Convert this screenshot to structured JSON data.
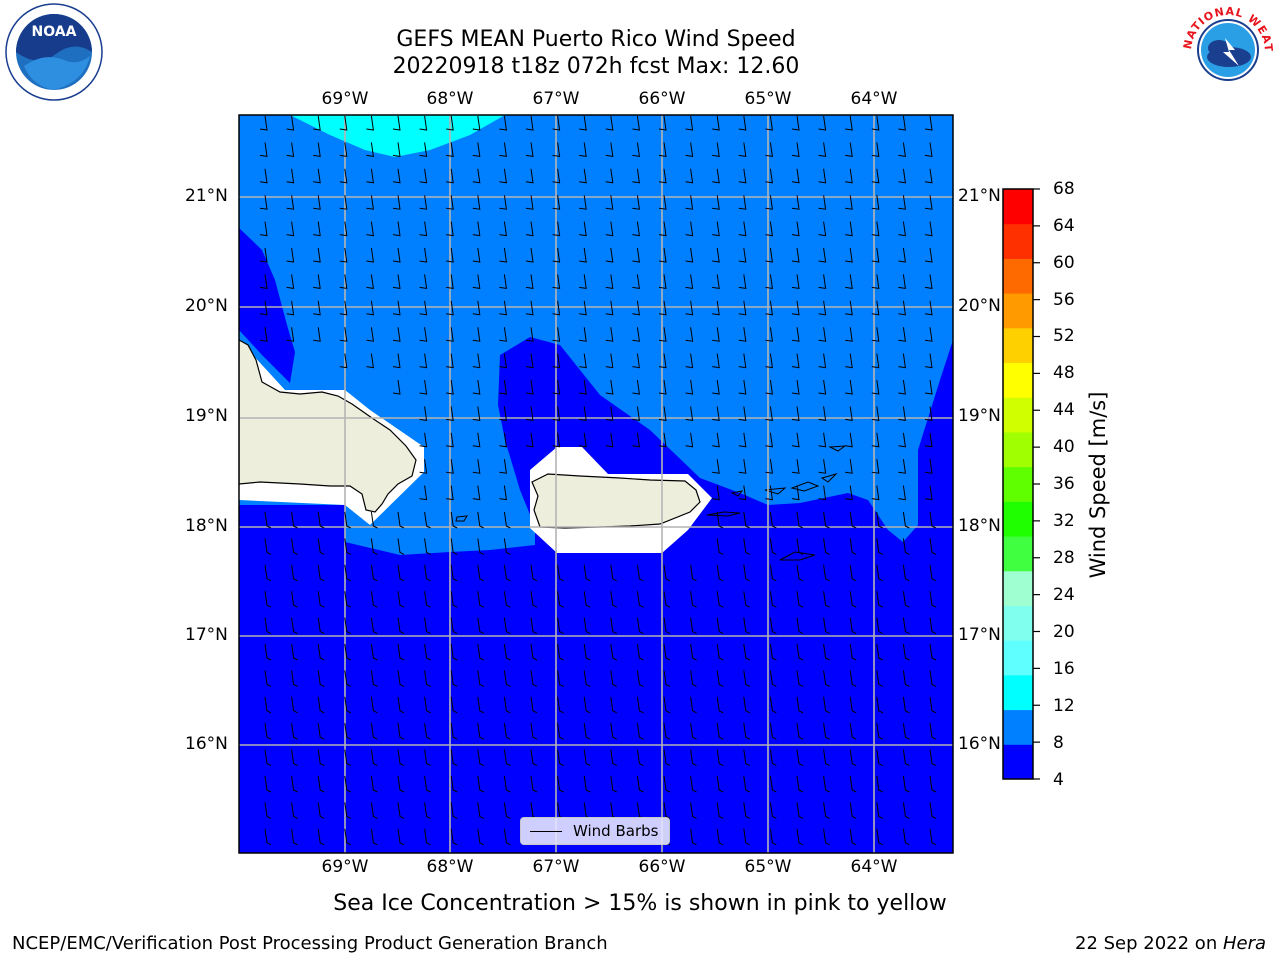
{
  "title": {
    "line1": "GEFS MEAN Puerto Rico Wind Speed",
    "line2": "20220918 t18z 072h fcst   Max: 12.60"
  },
  "map": {
    "lon_ticks": [
      "69°W",
      "68°W",
      "67°W",
      "66°W",
      "65°W",
      "64°W"
    ],
    "lat_ticks": [
      "21°N",
      "20°N",
      "19°N",
      "18°N",
      "17°N",
      "16°N"
    ],
    "lon_range": [
      -70.0,
      -63.25
    ],
    "lat_range": [
      15.0,
      21.75
    ],
    "colors": {
      "speed_4_8": "#0000ff",
      "speed_8_12": "#0080ff",
      "speed_12_16": "#00ffff",
      "land": "#eeeedd",
      "grid": "#b4b4b4"
    },
    "legend_label": "Wind Barbs",
    "barb_style": "short half-barbs pointing toward SE, winds from ENE"
  },
  "colorbar": {
    "label": "Wind Speed [m/s]",
    "ticks": [
      4,
      8,
      12,
      16,
      20,
      24,
      28,
      32,
      36,
      40,
      44,
      48,
      52,
      56,
      60,
      64,
      68
    ],
    "colors": [
      "#0000ff",
      "#0080ff",
      "#00ffff",
      "#60ffff",
      "#80ffee",
      "#a0ffd0",
      "#40ff40",
      "#20ff00",
      "#60ff00",
      "#a0ff00",
      "#d0ff00",
      "#ffff00",
      "#ffd000",
      "#ff9a00",
      "#ff6a00",
      "#ff3000",
      "#ff0000"
    ]
  },
  "footnote": "Sea Ice Concentration > 15% is shown in pink to yellow",
  "credit": "NCEP/EMC/Verification Post Processing Product Generation Branch",
  "date_text": "22 Sep 2022 on ",
  "machine": "Hera",
  "logos": {
    "left": "noaa-logo",
    "left_text": "NOAA",
    "right": "nws-logo",
    "right_text": "NATIONAL WEATHER SERVICE"
  }
}
